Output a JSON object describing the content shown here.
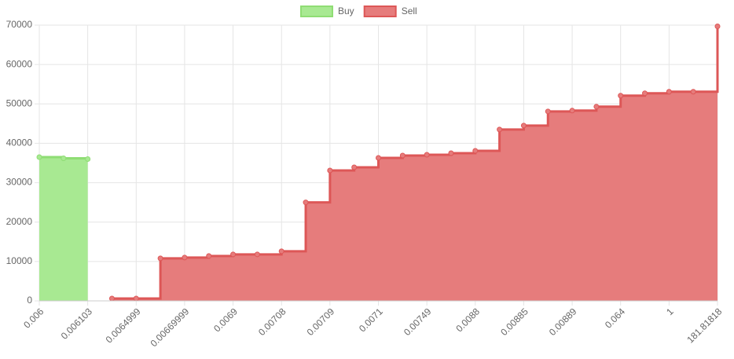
{
  "chart_data": {
    "type": "stepped-area",
    "categories": [
      "0.006",
      null,
      "0.006103",
      null,
      "0.0064999",
      null,
      "0.00669999",
      null,
      "0.0069",
      null,
      "0.00708",
      null,
      "0.00709",
      null,
      "0.0071",
      null,
      "0.00749",
      null,
      "0.0088",
      null,
      "0.00885",
      null,
      "0.00889",
      null,
      "0.064",
      null,
      "1",
      null,
      "181.81818"
    ],
    "series": [
      {
        "name": "Buy",
        "color": "#8fdd74",
        "fill": "#a8e992",
        "values": [
          36500,
          36200,
          36000,
          null,
          null,
          null,
          null,
          null,
          null,
          null,
          null,
          null,
          null,
          null,
          null,
          null,
          null,
          null,
          null,
          null,
          null,
          null,
          null,
          null,
          null,
          null,
          null,
          null,
          null
        ]
      },
      {
        "name": "Sell",
        "color": "#dd5757",
        "fill": "#e67c7c",
        "values": [
          null,
          null,
          null,
          600,
          600,
          10800,
          11000,
          11400,
          11800,
          11800,
          12600,
          25000,
          33100,
          33900,
          36300,
          36900,
          37100,
          37500,
          38100,
          43500,
          44500,
          48100,
          48300,
          49300,
          52100,
          52700,
          53100,
          53100,
          69700
        ]
      }
    ],
    "ylim": [
      0,
      70000
    ],
    "yticks": [
      0,
      10000,
      20000,
      30000,
      40000,
      50000,
      60000,
      70000
    ],
    "grid": true,
    "legend": "top"
  }
}
